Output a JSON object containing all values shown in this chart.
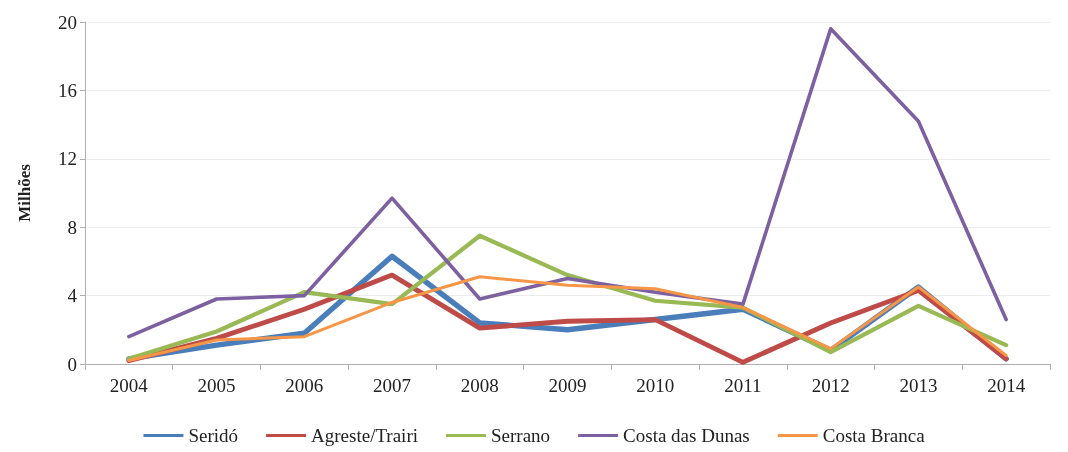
{
  "chart_data": {
    "type": "line",
    "ylabel": "Milhões",
    "categories": [
      "2004",
      "2005",
      "2006",
      "2007",
      "2008",
      "2009",
      "2010",
      "2011",
      "2012",
      "2013",
      "2014"
    ],
    "series": [
      {
        "name": "Seridó",
        "color": "#4a7ebb",
        "values": [
          0.3,
          1.1,
          1.8,
          6.3,
          2.4,
          2.0,
          2.6,
          3.2,
          0.8,
          4.5,
          0.3
        ]
      },
      {
        "name": "Agreste/Trairi",
        "color": "#be4b48",
        "values": [
          0.2,
          1.5,
          3.2,
          5.2,
          2.1,
          2.5,
          2.6,
          0.1,
          2.4,
          4.3,
          0.3
        ]
      },
      {
        "name": "Serrano",
        "color": "#98b954",
        "values": [
          0.3,
          1.9,
          4.2,
          3.5,
          7.5,
          5.2,
          3.7,
          3.3,
          0.7,
          3.4,
          1.1
        ]
      },
      {
        "name": "Costa das Dunas",
        "color": "#7d60a0",
        "values": [
          1.6,
          3.8,
          4.0,
          9.7,
          3.8,
          5.0,
          4.2,
          3.5,
          19.6,
          14.2,
          2.6
        ]
      },
      {
        "name": "Costa Branca",
        "color": "#f79646",
        "values": [
          0.2,
          1.4,
          1.6,
          3.6,
          5.1,
          4.6,
          4.4,
          3.3,
          0.9,
          4.5,
          0.5
        ]
      }
    ],
    "ylim": [
      0,
      20
    ],
    "yticks": [
      0,
      4,
      8,
      12,
      16,
      20
    ],
    "grid": "y",
    "legend": "bottom",
    "marker": "none",
    "line_style": "solid"
  }
}
